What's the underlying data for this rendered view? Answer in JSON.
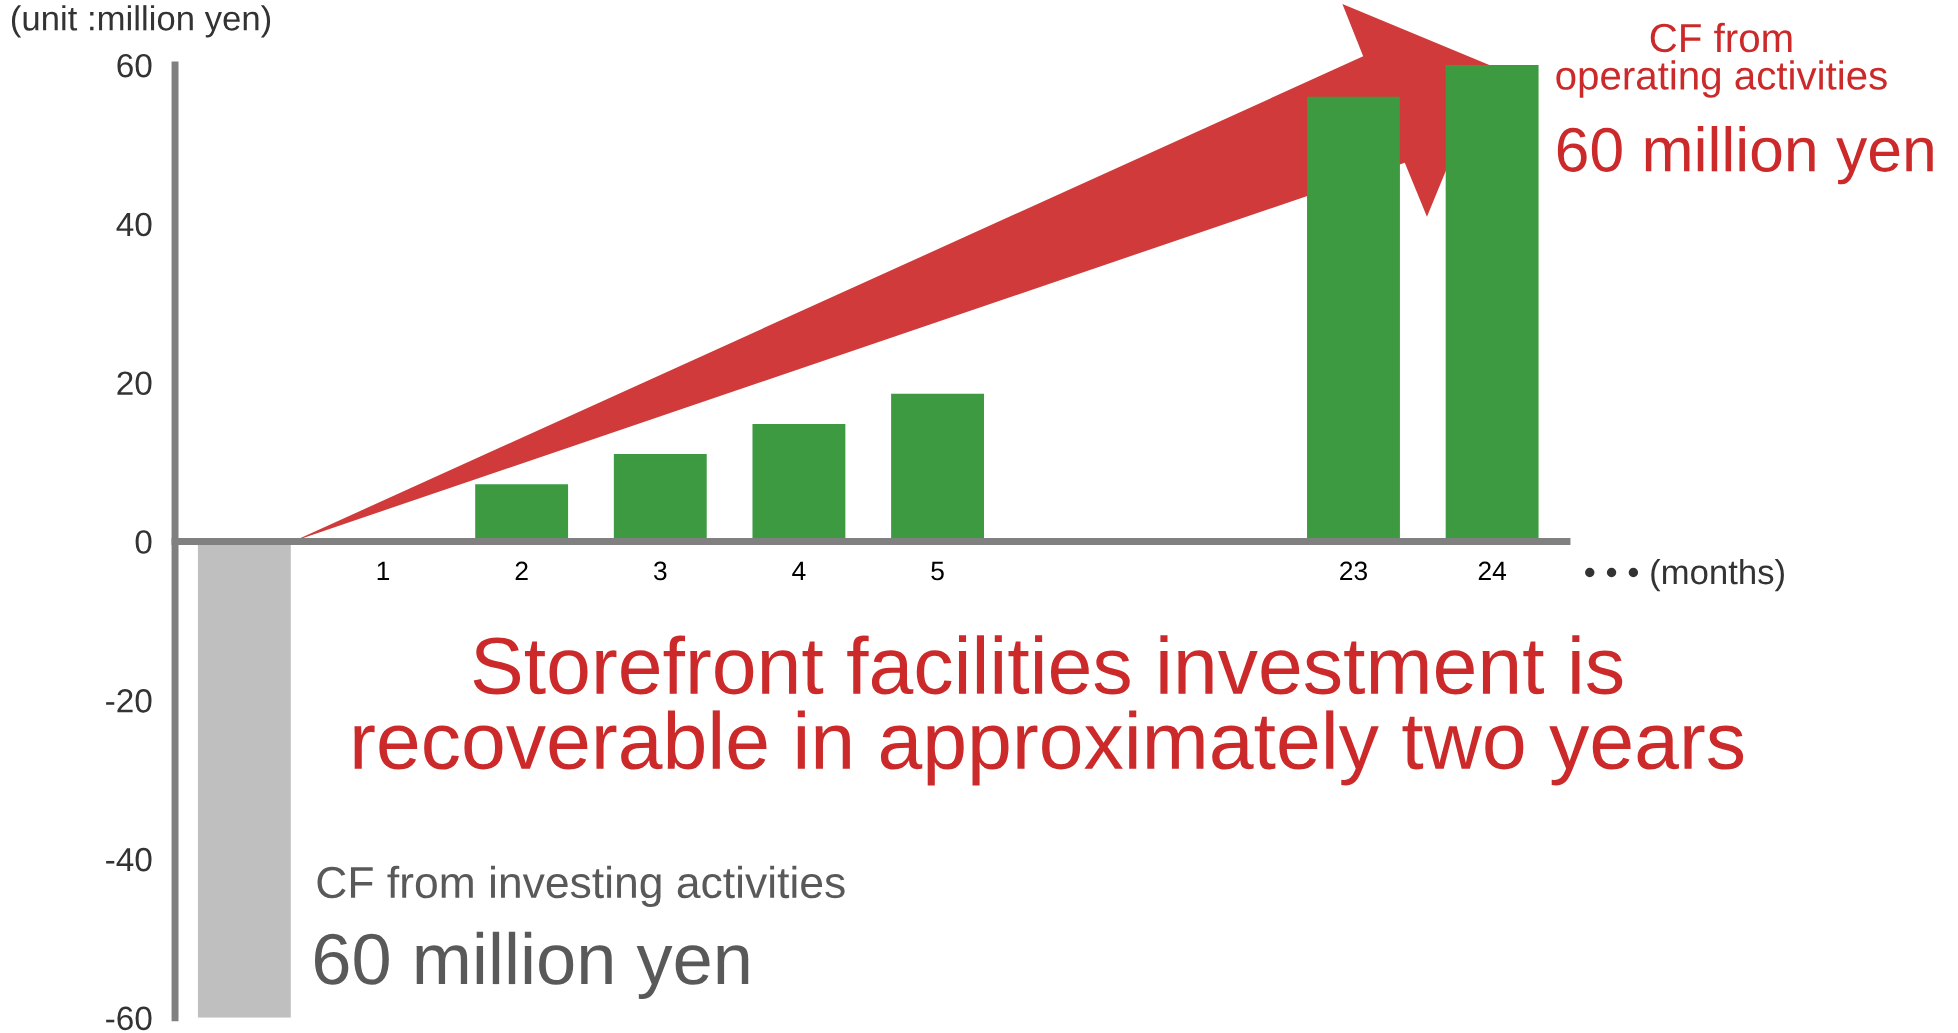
{
  "chart_data": {
    "type": "bar",
    "ylabel": "(unit :million yen)",
    "xlabel": "• • • (months)",
    "categories": [
      null,
      "1",
      "2",
      "3",
      "4",
      "5",
      null,
      null,
      "23",
      "24"
    ],
    "values": [
      -60,
      null,
      7.2,
      11,
      14.8,
      18.6,
      null,
      null,
      56,
      60
    ],
    "colors": [
      "#bfbfbf",
      "#3d9a40",
      "#3d9a40",
      "#3d9a40",
      "#3d9a40",
      "#3d9a40",
      "#3d9a40",
      "#3d9a40",
      "#3d9a40",
      "#3d9a40"
    ],
    "ylim": [
      -60,
      60
    ],
    "yticks": [
      -60,
      -40,
      -20,
      0,
      20,
      40,
      60
    ],
    "grid": false,
    "legend": false,
    "annotations": [
      "Storefront facilities investment is\nrecoverable in approximately two years",
      "CF from investing activities",
      "60 million yen",
      "CF from\noperating activities",
      "60 million yen"
    ]
  }
}
